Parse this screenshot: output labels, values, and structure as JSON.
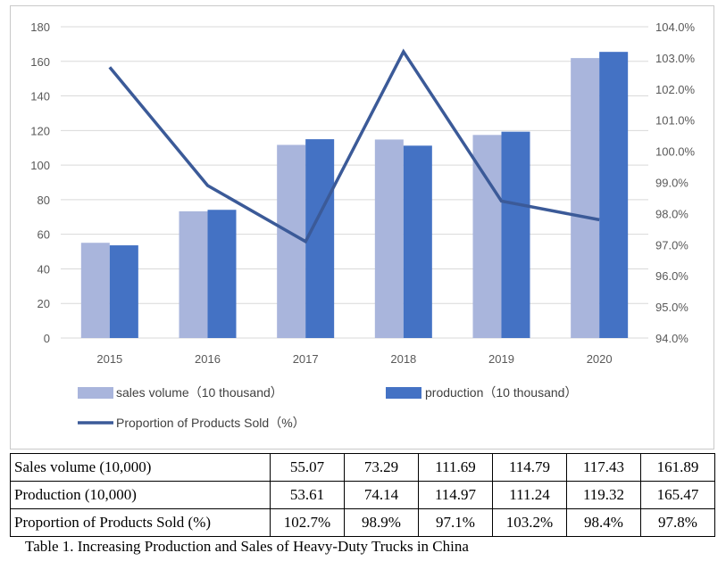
{
  "chart_data": {
    "type": "bar",
    "categories": [
      "2015",
      "2016",
      "2017",
      "2018",
      "2019",
      "2020"
    ],
    "series": [
      {
        "name": "sales volume（10 thousand）",
        "type": "bar",
        "axis": "left",
        "color": "#a9b5dc",
        "values": [
          55.07,
          73.29,
          111.69,
          114.79,
          117.43,
          161.89
        ]
      },
      {
        "name": "production（10 thousand）",
        "type": "bar",
        "axis": "left",
        "color": "#4472c4",
        "values": [
          53.61,
          74.14,
          114.97,
          111.24,
          119.32,
          165.47
        ]
      },
      {
        "name": "Proportion of Products Sold（%）",
        "type": "line",
        "axis": "right",
        "color": "#3b5a98",
        "values": [
          102.7,
          98.9,
          97.1,
          103.2,
          98.4,
          97.8
        ]
      }
    ],
    "ylim_left": [
      0,
      180
    ],
    "yticks_left": [
      "0",
      "20",
      "40",
      "60",
      "80",
      "100",
      "120",
      "140",
      "160",
      "180"
    ],
    "ylim_right": [
      94,
      104
    ],
    "yticks_right": [
      "94.0%",
      "95.0%",
      "96.0%",
      "97.0%",
      "98.0%",
      "99.0%",
      "100.0%",
      "101.0%",
      "102.0%",
      "103.0%",
      "104.0%"
    ],
    "grid": true,
    "legend_position": "bottom"
  },
  "table": {
    "rows": [
      {
        "label": "Sales volume (10,000)",
        "values": [
          "55.07",
          "73.29",
          "111.69",
          "114.79",
          "117.43",
          "161.89"
        ]
      },
      {
        "label": "Production (10,000)",
        "values": [
          "53.61",
          "74.14",
          "114.97",
          "111.24",
          "119.32",
          "165.47"
        ]
      },
      {
        "label": "Proportion of Products Sold (%)",
        "values": [
          "102.7%",
          "98.9%",
          "97.1%",
          "103.2%",
          "98.4%",
          "97.8%"
        ]
      }
    ]
  },
  "caption": "Table 1. Increasing Production and Sales of Heavy-Duty Trucks in China"
}
